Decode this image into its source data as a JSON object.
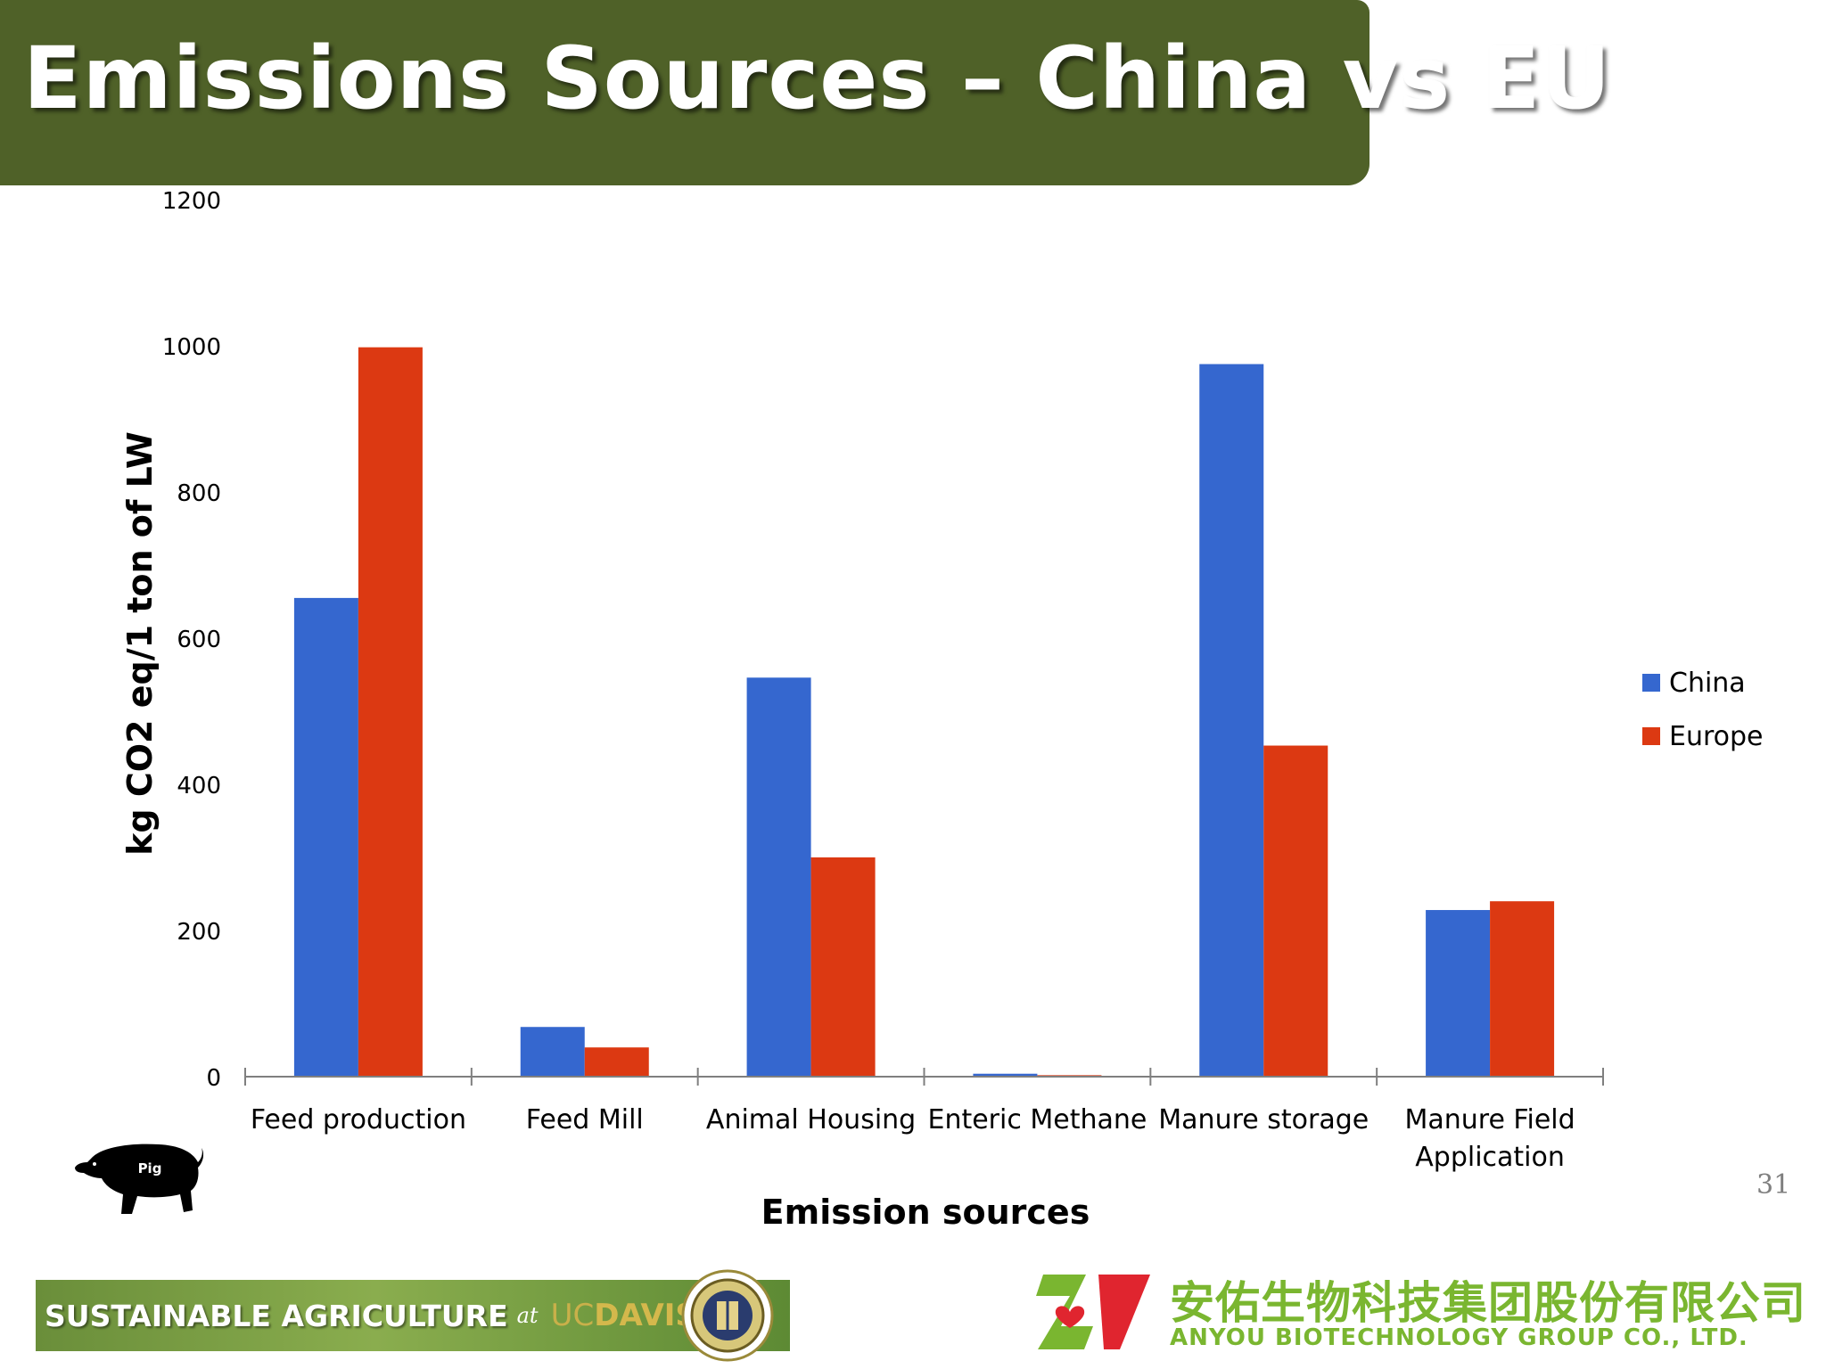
{
  "slide": {
    "title": "Emissions Sources – China vs EU",
    "page_number": "31"
  },
  "colors": {
    "title_bar": "#4f6128",
    "china": "#3567cf",
    "europe": "#dc3912",
    "axis": "#7f7f7f"
  },
  "chart_data": {
    "type": "bar",
    "categories": [
      [
        "Feed production"
      ],
      [
        "Feed Mill"
      ],
      [
        "Animal Housing"
      ],
      [
        "Enteric Methane"
      ],
      [
        "Manure storage"
      ],
      [
        "Manure Field",
        "Application"
      ]
    ],
    "series": [
      {
        "name": "China",
        "color": "#3567cf",
        "values": [
          655,
          68,
          546,
          4,
          975,
          228
        ]
      },
      {
        "name": "Europe",
        "color": "#dc3912",
        "values": [
          998,
          40,
          300,
          2,
          453,
          240
        ]
      }
    ],
    "xlabel": "Emission sources",
    "ylabel": "kg CO2 eq/1 ton of LW",
    "ylim": [
      0,
      1200
    ],
    "yticks": [
      0,
      200,
      400,
      600,
      800,
      1000,
      1200
    ],
    "grid": false,
    "legend_position": "right"
  },
  "logos": {
    "pig_label": "Pig",
    "sustainable_agriculture": "SUSTAINABLE  AGRICULTURE",
    "sa_at": "at",
    "sa_uc": "UC",
    "sa_davis": "DAVIS",
    "anyou_chinese": "安佑生物科技集团股份有限公司",
    "anyou_english": "ANYOU BIOTECHNOLOGY GROUP CO., LTD."
  }
}
